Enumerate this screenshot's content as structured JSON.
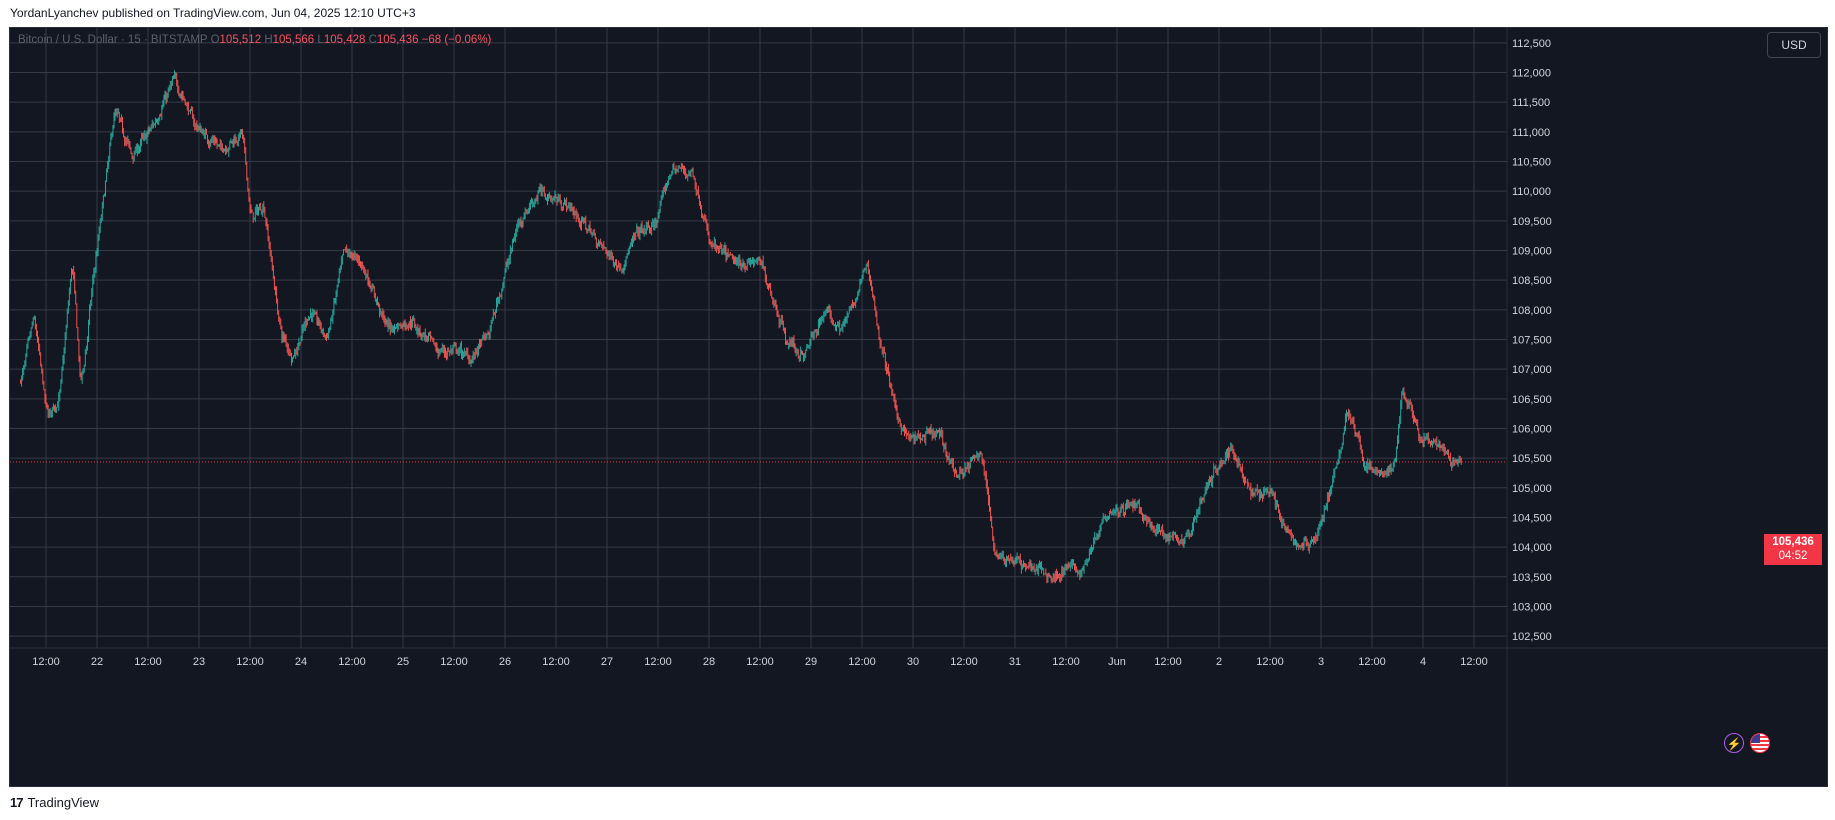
{
  "header": {
    "text": "YordanLyanchev published on TradingView.com, Jun 04, 2025 12:10 UTC+3"
  },
  "legend": {
    "symbol": "Bitcoin / U.S. Dollar · 15 · BITSTAMP",
    "o_label": "O",
    "o_value": "105,512",
    "h_label": "H",
    "h_value": "105,566",
    "l_label": "L",
    "l_value": "105,428",
    "c_label": "C",
    "c_value": "105,436",
    "change": "−68 (−0.06%)"
  },
  "currency_button": "USD",
  "price_tag": {
    "price": "105,436",
    "countdown": "04:52"
  },
  "footer": {
    "brand": "TradingView",
    "mark": "17"
  },
  "colors": {
    "up": "#26a69a",
    "down": "#ef5350",
    "background": "#131722",
    "grid": "#363a45",
    "text": "#d1d4dc",
    "last_price": "#f23645"
  },
  "icons": [
    "lightning-icon",
    "us-flag-icon"
  ],
  "chart_data": {
    "type": "candlestick",
    "title": "Bitcoin / U.S. Dollar · 15 · BITSTAMP",
    "x_ticks": [
      "12:00",
      "22",
      "12:00",
      "23",
      "12:00",
      "24",
      "12:00",
      "25",
      "12:00",
      "26",
      "12:00",
      "27",
      "12:00",
      "28",
      "12:00",
      "29",
      "12:00",
      "30",
      "12:00",
      "31",
      "12:00",
      "Jun",
      "12:00",
      "2",
      "12:00",
      "3",
      "12:00",
      "4",
      "12:00"
    ],
    "y_ticks": [
      102500,
      103000,
      103500,
      104000,
      104500,
      105000,
      105500,
      106000,
      106500,
      107000,
      107500,
      108000,
      108500,
      109000,
      109500,
      110000,
      110500,
      111000,
      111500,
      112000,
      112500
    ],
    "y_tick_labels": [
      "102,500",
      "103,000",
      "103,500",
      "104,000",
      "104,500",
      "105,000",
      "105,500",
      "106,000",
      "106,500",
      "107,000",
      "107,500",
      "108,000",
      "108,500",
      "109,000",
      "109,500",
      "110,000",
      "110,500",
      "111,000",
      "111,500",
      "112,000",
      "112,500"
    ],
    "ylim": [
      102300,
      112750
    ],
    "last_price": 105436,
    "anchors": [
      [
        "05-21 06:00",
        106800
      ],
      [
        "05-21 09:00",
        107900
      ],
      [
        "05-21 12:00",
        106200
      ],
      [
        "05-21 15:00",
        106500
      ],
      [
        "05-21 18:00",
        108900
      ],
      [
        "05-21 20:00",
        106600
      ],
      [
        "05-21 23:00",
        108600
      ],
      [
        "05-22 04:00",
        111400
      ],
      [
        "05-22 08:00",
        110600
      ],
      [
        "05-22 13:00",
        111100
      ],
      [
        "05-22 18:00",
        111900
      ],
      [
        "05-22 23:00",
        111100
      ],
      [
        "05-23 05:00",
        110700
      ],
      [
        "05-23 10:00",
        111000
      ],
      [
        "05-23 12:00",
        109500
      ],
      [
        "05-23 15:00",
        109800
      ],
      [
        "05-23 19:00",
        107600
      ],
      [
        "05-23 22:00",
        107200
      ],
      [
        "05-24 02:00",
        108000
      ],
      [
        "05-24 06:00",
        107500
      ],
      [
        "05-24 10:00",
        109000
      ],
      [
        "05-24 14:00",
        108800
      ],
      [
        "05-24 20:00",
        107700
      ],
      [
        "05-25 02:00",
        107800
      ],
      [
        "05-25 08:00",
        107300
      ],
      [
        "05-25 12:00",
        107300
      ],
      [
        "05-25 16:00",
        107200
      ],
      [
        "05-25 20:00",
        107600
      ],
      [
        "05-26 03:00",
        109500
      ],
      [
        "05-26 08:00",
        110000
      ],
      [
        "05-26 14:00",
        109800
      ],
      [
        "05-26 20:00",
        109300
      ],
      [
        "05-27 03:00",
        108700
      ],
      [
        "05-27 07:00",
        109300
      ],
      [
        "05-27 11:00",
        109400
      ],
      [
        "05-27 15:00",
        110400
      ],
      [
        "05-27 20:00",
        110300
      ],
      [
        "05-28 00:00",
        109100
      ],
      [
        "05-28 06:00",
        108800
      ],
      [
        "05-28 12:00",
        108800
      ],
      [
        "05-28 18:00",
        107500
      ],
      [
        "05-28 22:00",
        107200
      ],
      [
        "05-29 03:00",
        108000
      ],
      [
        "05-29 07:00",
        107700
      ],
      [
        "05-29 10:00",
        108100
      ],
      [
        "05-29 13:00",
        108800
      ],
      [
        "05-29 16:00",
        107500
      ],
      [
        "05-29 20:00",
        106200
      ],
      [
        "05-29 23:00",
        105800
      ],
      [
        "05-30 06:00",
        105900
      ],
      [
        "05-30 10:00",
        105200
      ],
      [
        "05-30 16:00",
        105600
      ],
      [
        "05-30 19:00",
        103900
      ],
      [
        "05-31 02:00",
        103700
      ],
      [
        "05-31 06:00",
        103600
      ],
      [
        "05-31 09:00",
        103500
      ],
      [
        "05-31 13:00",
        103700
      ],
      [
        "05-31 15:00",
        103500
      ],
      [
        "05-31 21:00",
        104600
      ],
      [
        "06-01 04:00",
        104700
      ],
      [
        "06-01 08:00",
        104300
      ],
      [
        "06-01 12:00",
        104200
      ],
      [
        "06-01 16:00",
        104100
      ],
      [
        "06-01 22:00",
        105200
      ],
      [
        "06-02 03:00",
        105700
      ],
      [
        "06-02 07:00",
        104900
      ],
      [
        "06-02 12:00",
        105000
      ],
      [
        "06-02 15:00",
        104300
      ],
      [
        "06-02 19:00",
        104000
      ],
      [
        "06-02 23:00",
        104200
      ],
      [
        "06-03 04:00",
        105500
      ],
      [
        "06-03 06:00",
        106400
      ],
      [
        "06-03 10:00",
        105400
      ],
      [
        "06-03 14:00",
        105200
      ],
      [
        "06-03 17:00",
        105300
      ],
      [
        "06-03 19:00",
        106700
      ],
      [
        "06-03 23:00",
        105800
      ],
      [
        "06-04 03:00",
        105700
      ],
      [
        "06-04 06:00",
        105500
      ],
      [
        "06-04 08:00",
        105400
      ],
      [
        "06-04 09:00",
        105436
      ]
    ]
  }
}
